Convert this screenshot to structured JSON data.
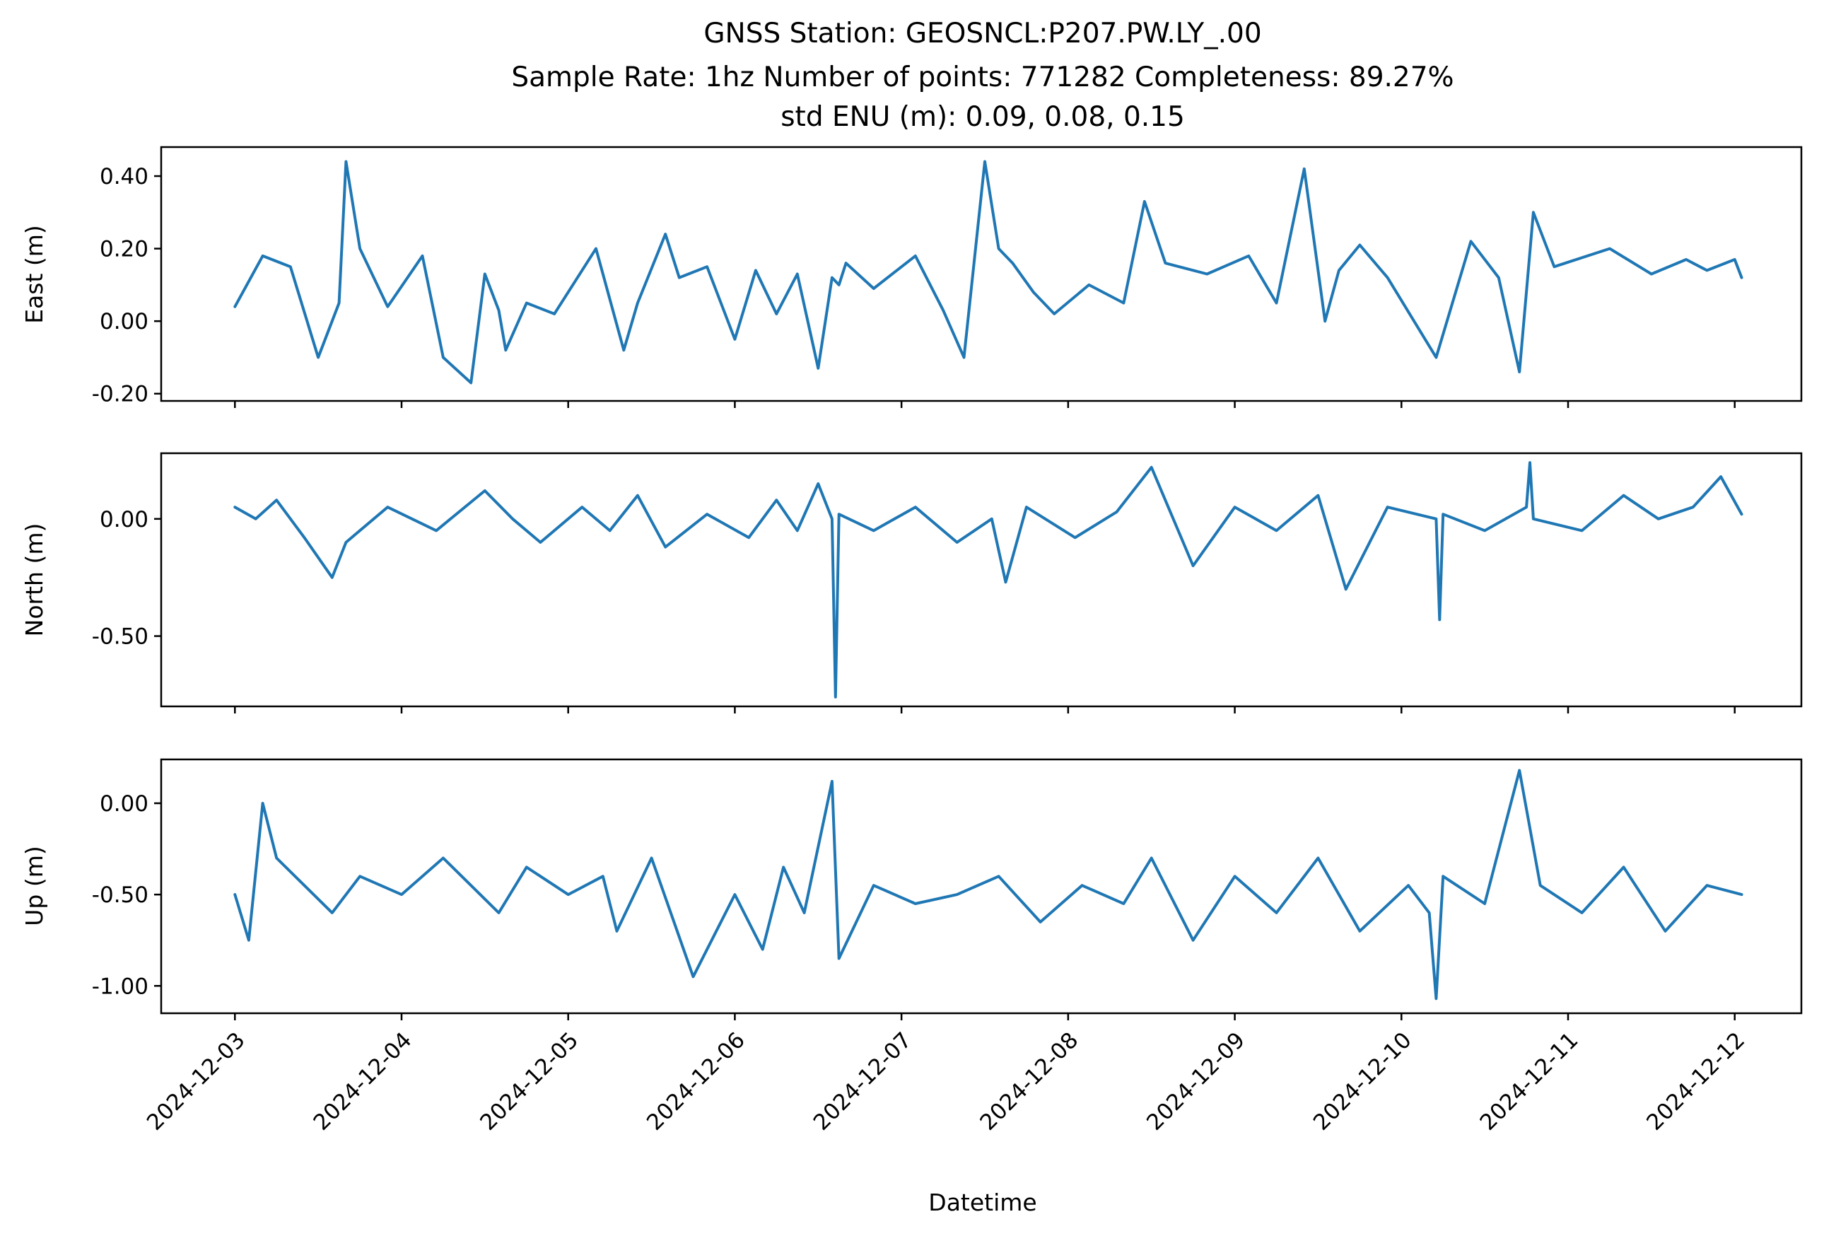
{
  "title_lines": [
    "GNSS Station: GEOSNCL:P207.PW.LY_.00",
    "Sample Rate: 1hz   Number of points: 771282    Completeness:  89.27%",
    "std ENU (m):  0.09, 0.08, 0.15"
  ],
  "colors": {
    "series": "#1f77b4",
    "axes": "#000000",
    "background": "#ffffff"
  },
  "chart_data": [
    {
      "type": "line",
      "ylabel": "East (m)",
      "ylim": [
        -0.22,
        0.48
      ],
      "yticks": [
        0.4,
        0.2,
        0.0,
        -0.2
      ],
      "ytick_labels": [
        "0.40",
        "0.20",
        "0.00",
        "-0.20"
      ],
      "xlim": [
        "2024-12-02T13:23",
        "2024-12-12T09:36"
      ],
      "show_xtick_labels": false,
      "x": [
        "2024-12-03T00:00",
        "2024-12-03T04:00",
        "2024-12-03T08:00",
        "2024-12-03T12:00",
        "2024-12-03T15:00",
        "2024-12-03T16:00",
        "2024-12-03T18:00",
        "2024-12-03T22:00",
        "2024-12-04T03:00",
        "2024-12-04T06:00",
        "2024-12-04T10:00",
        "2024-12-04T12:00",
        "2024-12-04T14:00",
        "2024-12-04T15:00",
        "2024-12-04T18:00",
        "2024-12-04T22:00",
        "2024-12-05T04:00",
        "2024-12-05T08:00",
        "2024-12-05T10:00",
        "2024-12-05T14:00",
        "2024-12-05T16:00",
        "2024-12-05T20:00",
        "2024-12-06T00:00",
        "2024-12-06T03:00",
        "2024-12-06T06:00",
        "2024-12-06T09:00",
        "2024-12-06T12:00",
        "2024-12-06T14:00",
        "2024-12-06T15:00",
        "2024-12-06T16:00",
        "2024-12-06T20:00",
        "2024-12-07T02:00",
        "2024-12-07T06:00",
        "2024-12-07T09:00",
        "2024-12-07T12:00",
        "2024-12-07T14:00",
        "2024-12-07T16:00",
        "2024-12-07T19:00",
        "2024-12-07T22:00",
        "2024-12-08T03:00",
        "2024-12-08T08:00",
        "2024-12-08T11:00",
        "2024-12-08T14:00",
        "2024-12-08T20:00",
        "2024-12-09T02:00",
        "2024-12-09T06:00",
        "2024-12-09T10:00",
        "2024-12-09T13:00",
        "2024-12-09T15:00",
        "2024-12-09T18:00",
        "2024-12-09T22:00",
        "2024-12-10T05:00",
        "2024-12-10T10:00",
        "2024-12-10T14:00",
        "2024-12-10T17:00",
        "2024-12-10T19:00",
        "2024-12-10T22:00",
        "2024-12-11T06:00",
        "2024-12-11T12:00",
        "2024-12-11T17:00",
        "2024-12-11T20:00",
        "2024-12-12T00:00",
        "2024-12-12T01:00"
      ],
      "y": [
        0.04,
        0.18,
        0.15,
        -0.1,
        0.05,
        0.44,
        0.2,
        0.04,
        0.18,
        -0.1,
        -0.17,
        0.13,
        0.03,
        -0.08,
        0.05,
        0.02,
        0.2,
        -0.08,
        0.05,
        0.24,
        0.12,
        0.15,
        -0.05,
        0.14,
        0.02,
        0.13,
        -0.13,
        0.12,
        0.1,
        0.16,
        0.09,
        0.18,
        0.03,
        -0.1,
        0.44,
        0.2,
        0.16,
        0.08,
        0.02,
        0.1,
        0.05,
        0.33,
        0.16,
        0.13,
        0.18,
        0.05,
        0.42,
        0.0,
        0.14,
        0.21,
        0.12,
        -0.1,
        0.22,
        0.12,
        -0.14,
        0.3,
        0.15,
        0.2,
        0.13,
        0.17,
        0.14,
        0.17,
        0.12
      ]
    },
    {
      "type": "line",
      "ylabel": "North (m)",
      "ylim": [
        -0.8,
        0.28
      ],
      "yticks": [
        0.0,
        -0.5
      ],
      "ytick_labels": [
        "0.00",
        "-0.50"
      ],
      "xlim": [
        "2024-12-02T13:23",
        "2024-12-12T09:36"
      ],
      "show_xtick_labels": false,
      "x": [
        "2024-12-03T00:00",
        "2024-12-03T03:00",
        "2024-12-03T06:00",
        "2024-12-03T10:00",
        "2024-12-03T14:00",
        "2024-12-03T16:00",
        "2024-12-03T22:00",
        "2024-12-04T05:00",
        "2024-12-04T12:00",
        "2024-12-04T16:00",
        "2024-12-04T20:00",
        "2024-12-05T02:00",
        "2024-12-05T06:00",
        "2024-12-05T10:00",
        "2024-12-05T14:00",
        "2024-12-05T20:00",
        "2024-12-06T02:00",
        "2024-12-06T06:00",
        "2024-12-06T09:00",
        "2024-12-06T12:00",
        "2024-12-06T14:00",
        "2024-12-06T14:30",
        "2024-12-06T15:00",
        "2024-12-06T20:00",
        "2024-12-07T02:00",
        "2024-12-07T08:00",
        "2024-12-07T13:00",
        "2024-12-07T15:00",
        "2024-12-07T18:00",
        "2024-12-08T01:00",
        "2024-12-08T07:00",
        "2024-12-08T12:00",
        "2024-12-08T18:00",
        "2024-12-09T00:00",
        "2024-12-09T06:00",
        "2024-12-09T12:00",
        "2024-12-09T16:00",
        "2024-12-09T22:00",
        "2024-12-10T05:00",
        "2024-12-10T05:30",
        "2024-12-10T06:00",
        "2024-12-10T12:00",
        "2024-12-10T18:00",
        "2024-12-10T18:30",
        "2024-12-10T19:00",
        "2024-12-11T02:00",
        "2024-12-11T08:00",
        "2024-12-11T13:00",
        "2024-12-11T18:00",
        "2024-12-11T22:00",
        "2024-12-12T01:00"
      ],
      "y": [
        0.05,
        0.0,
        0.08,
        -0.08,
        -0.25,
        -0.1,
        0.05,
        -0.05,
        0.12,
        0.0,
        -0.1,
        0.05,
        -0.05,
        0.1,
        -0.12,
        0.02,
        -0.08,
        0.08,
        -0.05,
        0.15,
        0.0,
        -0.76,
        0.02,
        -0.05,
        0.05,
        -0.1,
        0.0,
        -0.27,
        0.05,
        -0.08,
        0.03,
        0.22,
        -0.2,
        0.05,
        -0.05,
        0.1,
        -0.3,
        0.05,
        0.0,
        -0.43,
        0.02,
        -0.05,
        0.05,
        0.24,
        0.0,
        -0.05,
        0.1,
        0.0,
        0.05,
        0.18,
        0.02
      ]
    },
    {
      "type": "line",
      "ylabel": "Up (m)",
      "ylim": [
        -1.15,
        0.24
      ],
      "yticks": [
        0.0,
        -0.5,
        -1.0
      ],
      "ytick_labels": [
        "0.00",
        "-0.50",
        "-1.00"
      ],
      "xlim": [
        "2024-12-02T13:23",
        "2024-12-12T09:36"
      ],
      "xlabel": "Datetime",
      "xticks": [
        "2024-12-03",
        "2024-12-04",
        "2024-12-05",
        "2024-12-06",
        "2024-12-07",
        "2024-12-08",
        "2024-12-09",
        "2024-12-10",
        "2024-12-11",
        "2024-12-12"
      ],
      "show_xtick_labels": true,
      "x": [
        "2024-12-03T00:00",
        "2024-12-03T02:00",
        "2024-12-03T04:00",
        "2024-12-03T06:00",
        "2024-12-03T10:00",
        "2024-12-03T14:00",
        "2024-12-03T18:00",
        "2024-12-04T00:00",
        "2024-12-04T06:00",
        "2024-12-04T10:00",
        "2024-12-04T14:00",
        "2024-12-04T18:00",
        "2024-12-05T00:00",
        "2024-12-05T05:00",
        "2024-12-05T07:00",
        "2024-12-05T12:00",
        "2024-12-05T18:00",
        "2024-12-06T00:00",
        "2024-12-06T04:00",
        "2024-12-06T07:00",
        "2024-12-06T10:00",
        "2024-12-06T14:00",
        "2024-12-06T15:00",
        "2024-12-06T20:00",
        "2024-12-07T02:00",
        "2024-12-07T08:00",
        "2024-12-07T14:00",
        "2024-12-07T20:00",
        "2024-12-08T02:00",
        "2024-12-08T08:00",
        "2024-12-08T12:00",
        "2024-12-08T18:00",
        "2024-12-09T00:00",
        "2024-12-09T06:00",
        "2024-12-09T12:00",
        "2024-12-09T18:00",
        "2024-12-10T01:00",
        "2024-12-10T04:00",
        "2024-12-10T05:00",
        "2024-12-10T06:00",
        "2024-12-10T12:00",
        "2024-12-10T17:00",
        "2024-12-10T20:00",
        "2024-12-11T02:00",
        "2024-12-11T08:00",
        "2024-12-11T14:00",
        "2024-12-11T20:00",
        "2024-12-12T01:00"
      ],
      "y": [
        -0.5,
        -0.75,
        0.0,
        -0.3,
        -0.45,
        -0.6,
        -0.4,
        -0.5,
        -0.3,
        -0.45,
        -0.6,
        -0.35,
        -0.5,
        -0.4,
        -0.7,
        -0.3,
        -0.95,
        -0.5,
        -0.8,
        -0.35,
        -0.6,
        0.12,
        -0.85,
        -0.45,
        -0.55,
        -0.5,
        -0.4,
        -0.65,
        -0.45,
        -0.55,
        -0.3,
        -0.75,
        -0.4,
        -0.6,
        -0.3,
        -0.7,
        -0.45,
        -0.6,
        -1.07,
        -0.4,
        -0.55,
        0.18,
        -0.45,
        -0.6,
        -0.35,
        -0.7,
        -0.45,
        -0.5
      ]
    }
  ]
}
